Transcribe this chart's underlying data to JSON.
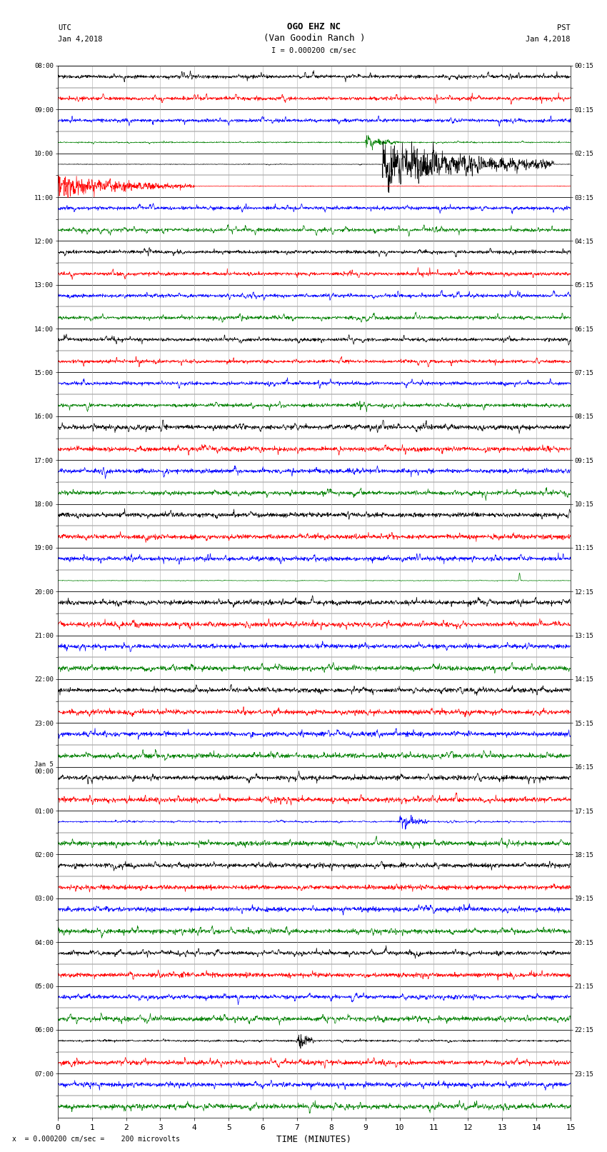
{
  "title_line1": "OGO EHZ NC",
  "title_line2": "(Van Goodin Ranch )",
  "title_line3": "I = 0.000200 cm/sec",
  "left_label_top": "UTC",
  "left_label_date": "Jan 4,2018",
  "right_label_top": "PST",
  "right_label_date": "Jan 4,2018",
  "bottom_label": "TIME (MINUTES)",
  "footnote": "x  = 0.000200 cm/sec =    200 microvolts",
  "xlabel_ticks": [
    0,
    1,
    2,
    3,
    4,
    5,
    6,
    7,
    8,
    9,
    10,
    11,
    12,
    13,
    14,
    15
  ],
  "utc_times": [
    "08:00",
    "",
    "09:00",
    "",
    "10:00",
    "",
    "11:00",
    "",
    "12:00",
    "",
    "13:00",
    "",
    "14:00",
    "",
    "15:00",
    "",
    "16:00",
    "",
    "17:00",
    "",
    "18:00",
    "",
    "19:00",
    "",
    "20:00",
    "",
    "21:00",
    "",
    "22:00",
    "",
    "23:00",
    "",
    "Jan 5\n00:00",
    "",
    "01:00",
    "",
    "02:00",
    "",
    "03:00",
    "",
    "04:00",
    "",
    "05:00",
    "",
    "06:00",
    "",
    "07:00",
    ""
  ],
  "pst_times": [
    "00:15",
    "",
    "01:15",
    "",
    "02:15",
    "",
    "03:15",
    "",
    "04:15",
    "",
    "05:15",
    "",
    "06:15",
    "",
    "07:15",
    "",
    "08:15",
    "",
    "09:15",
    "",
    "10:15",
    "",
    "11:15",
    "",
    "12:15",
    "",
    "13:15",
    "",
    "14:15",
    "",
    "15:15",
    "",
    "16:15",
    "",
    "17:15",
    "",
    "18:15",
    "",
    "19:15",
    "",
    "20:15",
    "",
    "21:15",
    "",
    "22:15",
    "",
    "23:15",
    ""
  ],
  "num_rows": 48,
  "xlim": [
    0,
    15
  ],
  "background_color": "#ffffff",
  "grid_color": "#aaaaaa",
  "border_color": "#000000",
  "trace_colors_cycle": [
    "black",
    "red",
    "blue",
    "green"
  ],
  "noise_amplitude": 0.018,
  "seismic_row": 4,
  "seismic_amplitude": 0.42
}
